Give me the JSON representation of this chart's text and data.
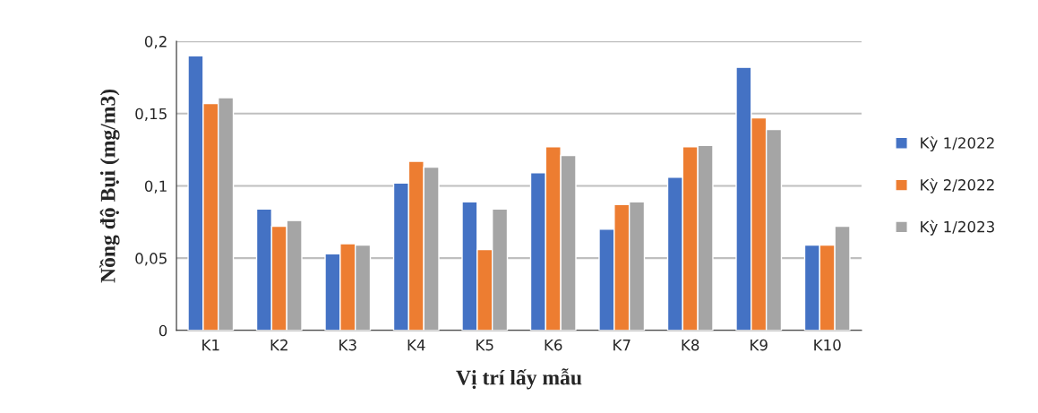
{
  "chart_data": {
    "type": "bar",
    "xlabel": "Vị trí lấy mẫu",
    "ylabel": "Nồng độ Bụi (mg/m3)",
    "categories": [
      "K1",
      "K2",
      "K3",
      "K4",
      "K5",
      "K6",
      "K7",
      "K8",
      "K9",
      "K10"
    ],
    "series": [
      {
        "name": "Kỳ 1/2022",
        "color": "#4472c4",
        "values": [
          0.19,
          0.084,
          0.053,
          0.102,
          0.089,
          0.109,
          0.07,
          0.106,
          0.182,
          0.059
        ]
      },
      {
        "name": "Kỳ 2/2022",
        "color": "#ed7d31",
        "values": [
          0.157,
          0.072,
          0.06,
          0.117,
          0.056,
          0.127,
          0.087,
          0.127,
          0.147,
          0.059
        ]
      },
      {
        "name": "Kỳ 1/2023",
        "color": "#a5a5a5",
        "values": [
          0.161,
          0.076,
          0.059,
          0.113,
          0.084,
          0.121,
          0.089,
          0.128,
          0.139,
          0.072
        ]
      }
    ],
    "ylim": [
      0,
      0.2
    ],
    "yticks": [
      0,
      {
        "value": 0.05,
        "label": "0,05"
      },
      {
        "value": 0.1,
        "label": "0,1"
      },
      {
        "value": 0.15,
        "label": "0,15"
      },
      {
        "value": 0.2,
        "label": "0,2"
      }
    ],
    "grid": "y",
    "legend": "right"
  }
}
